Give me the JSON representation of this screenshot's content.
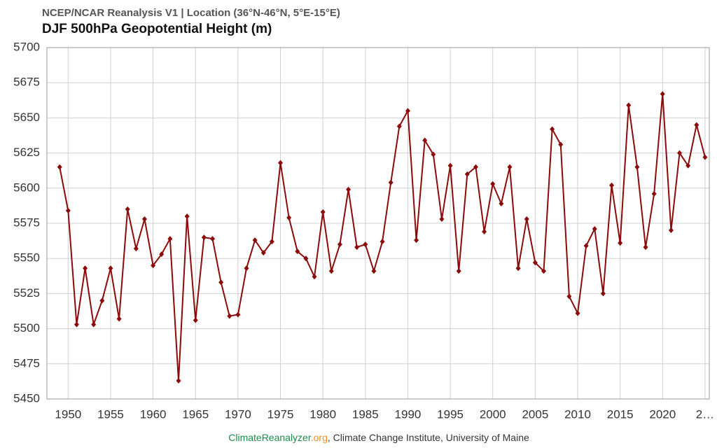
{
  "chart_data": {
    "type": "line",
    "subtitle": "NCEP/NCAR Reanalysis V1 | Location (36°N-46°N, 5°E-15°E)",
    "title": "DJF 500hPa Geopotential Height (m)",
    "source": [
      "ClimateReanalyzer",
      ".org",
      ", Climate Change Institute, University of Maine"
    ],
    "x": [
      1949,
      1950,
      1951,
      1952,
      1953,
      1954,
      1955,
      1956,
      1957,
      1958,
      1959,
      1960,
      1961,
      1962,
      1963,
      1964,
      1965,
      1966,
      1967,
      1968,
      1969,
      1970,
      1971,
      1972,
      1973,
      1974,
      1975,
      1976,
      1977,
      1978,
      1979,
      1980,
      1981,
      1982,
      1983,
      1984,
      1985,
      1986,
      1987,
      1988,
      1989,
      1990,
      1991,
      1992,
      1993,
      1994,
      1995,
      1996,
      1997,
      1998,
      1999,
      2000,
      2001,
      2002,
      2003,
      2004,
      2005,
      2006,
      2007,
      2008,
      2009,
      2010,
      2011,
      2012,
      2013,
      2014,
      2015,
      2016,
      2017,
      2018,
      2019,
      2020,
      2021,
      2022,
      2023,
      2024,
      2025
    ],
    "series": [
      {
        "color": "#8b0a0a",
        "values": [
          5615,
          5584,
          5503,
          5543,
          5503,
          5520,
          5543,
          5507,
          5585,
          5557,
          5578,
          5545,
          5553,
          5564,
          5463,
          5580,
          5506,
          5565,
          5564,
          5533,
          5509,
          5510,
          5543,
          5563,
          5554,
          5562,
          5618,
          5579,
          5555,
          5550,
          5537,
          5583,
          5541,
          5560,
          5599,
          5558,
          5560,
          5541,
          5562,
          5604,
          5644,
          5655,
          5563,
          5634,
          5624,
          5578,
          5616,
          5541,
          5610,
          5615,
          5569,
          5603,
          5589,
          5615,
          5543,
          5578,
          5547,
          5541,
          5642,
          5631,
          5523,
          5511,
          5559,
          5571,
          5525,
          5602,
          5561,
          5659,
          5615,
          5558,
          5596,
          5667,
          5570,
          5625,
          5616,
          5645,
          5622
        ]
      }
    ],
    "xlim": [
      1947.5,
      2025.5
    ],
    "xticks": [
      1950,
      1955,
      1960,
      1965,
      1970,
      1975,
      1980,
      1985,
      1990,
      1995,
      2000,
      2005,
      2010,
      2015,
      2020,
      {
        "value": 2025,
        "label": "2…"
      }
    ],
    "ylim": [
      5450,
      5700
    ],
    "yticks": [
      5450,
      5475,
      5500,
      5525,
      5550,
      5575,
      5600,
      5625,
      5650,
      5675,
      5700
    ],
    "grid": true
  }
}
